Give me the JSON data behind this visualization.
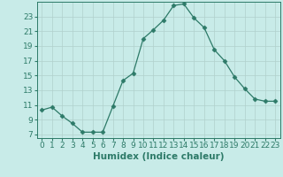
{
  "x": [
    0,
    1,
    2,
    3,
    4,
    5,
    6,
    7,
    8,
    9,
    10,
    11,
    12,
    13,
    14,
    15,
    16,
    17,
    18,
    19,
    20,
    21,
    22,
    23
  ],
  "y": [
    10.3,
    10.7,
    9.5,
    8.5,
    7.3,
    7.3,
    7.3,
    10.8,
    14.3,
    15.3,
    20.0,
    21.2,
    22.5,
    24.5,
    24.7,
    22.8,
    21.5,
    18.5,
    17.0,
    14.8,
    13.2,
    11.8,
    11.5,
    11.5
  ],
  "line_color": "#2d7a68",
  "marker": "D",
  "marker_size": 2.5,
  "bg_color": "#c8ebe8",
  "grid_color": "#b0d0cc",
  "xlabel": "Humidex (Indice chaleur)",
  "xlim": [
    -0.5,
    23.5
  ],
  "ylim": [
    6.5,
    25.0
  ],
  "yticks": [
    7,
    9,
    11,
    13,
    15,
    17,
    19,
    21,
    23
  ],
  "xticks": [
    0,
    1,
    2,
    3,
    4,
    5,
    6,
    7,
    8,
    9,
    10,
    11,
    12,
    13,
    14,
    15,
    16,
    17,
    18,
    19,
    20,
    21,
    22,
    23
  ],
  "tick_color": "#2d7a68",
  "axis_color": "#2d7a68",
  "label_fontsize": 7.5,
  "tick_fontsize": 6.5
}
